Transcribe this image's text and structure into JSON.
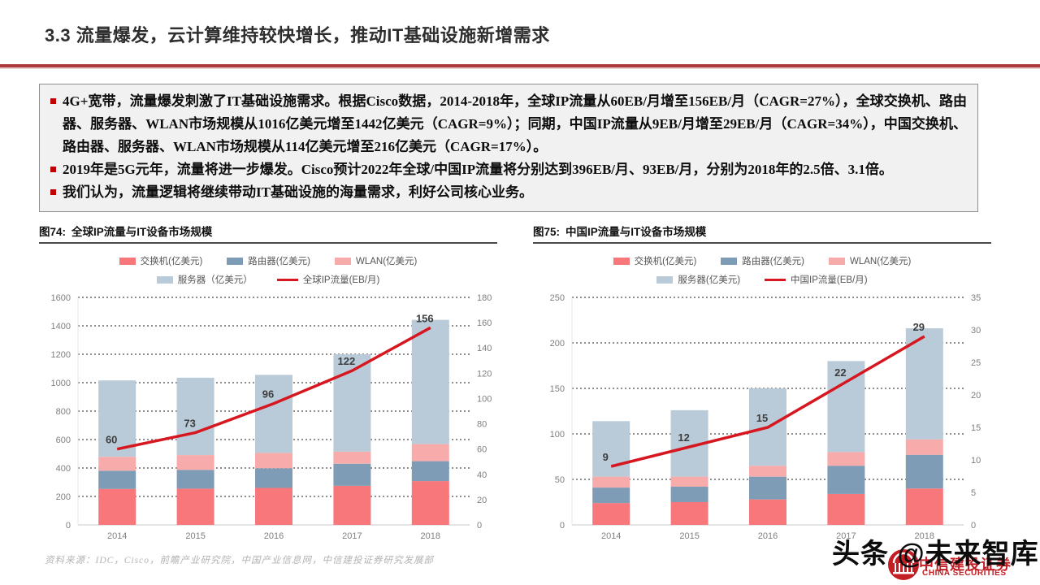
{
  "header": {
    "title": "3.3 流量爆发，云计算维持较快增长，推动IT基础设施新增需求"
  },
  "summary": {
    "bullets": [
      "4G+宽带，流量爆发刺激了IT基础设施需求。根据Cisco数据，2014-2018年，全球IP流量从60EB/月增至156EB/月（CAGR=27%），全球交换机、路由器、服务器、WLAN市场规模从1016亿美元增至1442亿美元（CAGR=9%）；同期，中国IP流量从9EB/月增至29EB/月（CAGR=34%），中国交换机、路由器、服务器、WLAN市场规模从114亿美元增至216亿美元（CAGR=17%）。",
      "2019年是5G元年，流量将进一步爆发。Cisco预计2022年全球/中国IP流量将分别达到396EB/月、93EB/月，分别为2018年的2.5倍、3.1倍。",
      "我们认为，流量逻辑将继续带动IT基础设施的海量需求，利好公司核心业务。"
    ]
  },
  "figures": [
    {
      "label": "图74:",
      "title": "全球IP流量与IT设备市场规模"
    },
    {
      "label": "图75:",
      "title": "中国IP流量与IT设备市场规模"
    }
  ],
  "chart_data": [
    {
      "type": "bar",
      "subtype": "stacked-bar-with-line",
      "title": "全球IP流量与IT设备市场规模",
      "categories": [
        "2014",
        "2015",
        "2016",
        "2017",
        "2018"
      ],
      "left_axis": {
        "min": 0,
        "max": 1600,
        "step": 200,
        "unit": "亿美元"
      },
      "right_axis": {
        "min": 0,
        "max": 180,
        "step": 20,
        "unit": "EB/月"
      },
      "grid": "horizontal-dashed",
      "legend_position": "top-center",
      "series": [
        {
          "name": "交换机(亿美元)",
          "type": "bar",
          "color": "#f8777b",
          "values": [
            253,
            255,
            260,
            275,
            308
          ]
        },
        {
          "name": "路由器(亿美元)",
          "type": "bar",
          "color": "#7f9cb7",
          "values": [
            128,
            132,
            138,
            155,
            140
          ]
        },
        {
          "name": "WLAN(亿美元)",
          "type": "bar",
          "color": "#f7abab",
          "values": [
            98,
            104,
            108,
            85,
            120
          ]
        },
        {
          "name": "服务器（亿美元）",
          "type": "bar",
          "color": "#b9cbd9",
          "values": [
            537,
            544,
            549,
            685,
            874
          ]
        },
        {
          "name": "全球IP流量(EB/月)",
          "type": "line",
          "axis": "right",
          "color": "#d7171f",
          "values": [
            60,
            73,
            96,
            122,
            156
          ],
          "labels_shown": true
        }
      ],
      "bar_totals": [
        1016,
        1035,
        1055,
        1200,
        1442
      ]
    },
    {
      "type": "bar",
      "subtype": "stacked-bar-with-line",
      "title": "中国IP流量与IT设备市场规模",
      "categories": [
        "2014",
        "2015",
        "2016",
        "2017",
        "2018"
      ],
      "left_axis": {
        "min": 0,
        "max": 250,
        "step": 50,
        "unit": "亿美元"
      },
      "right_axis": {
        "min": 0,
        "max": 35,
        "step": 5,
        "unit": "EB/月"
      },
      "grid": "horizontal-dashed",
      "legend_position": "top-center",
      "series": [
        {
          "name": "交换机(亿美元)",
          "type": "bar",
          "color": "#f8777b",
          "values": [
            24,
            25,
            28,
            34,
            40
          ]
        },
        {
          "name": "路由器(亿美元)",
          "type": "bar",
          "color": "#7f9cb7",
          "values": [
            17,
            17,
            25,
            31,
            37
          ]
        },
        {
          "name": "WLAN(亿美元)",
          "type": "bar",
          "color": "#f7abab",
          "values": [
            12,
            11,
            12,
            15,
            17
          ]
        },
        {
          "name": "服务器(亿美元)",
          "type": "bar",
          "color": "#b9cbd9",
          "values": [
            61,
            73,
            85,
            100,
            122
          ]
        },
        {
          "name": "中国IP流量(EB/月)",
          "type": "line",
          "axis": "right",
          "color": "#d7171f",
          "values": [
            9,
            12,
            15,
            22,
            29
          ],
          "labels_shown": true
        }
      ],
      "bar_totals": [
        114,
        126,
        150,
        180,
        216
      ]
    }
  ],
  "footer": {
    "source": "资料来源：IDC，Cisco，前瞻产业研究院，中国产业信息网，中信建投证券研究发展部"
  },
  "watermark": {
    "headline": "头条 @未来智库",
    "brand_cn": "中信建投证券",
    "brand_en": "CHINA SECURITIES"
  },
  "colors": {
    "title_rule_red": "#ad393d",
    "bullet_red": "#c00000",
    "summary_bg": "#f1f1f1",
    "line_red": "#d7171f",
    "brand_red": "#c21e24",
    "bar_switch": "#f8777b",
    "bar_router": "#7f9cb7",
    "bar_wlan": "#f7abab",
    "bar_server": "#b9cbd9"
  }
}
